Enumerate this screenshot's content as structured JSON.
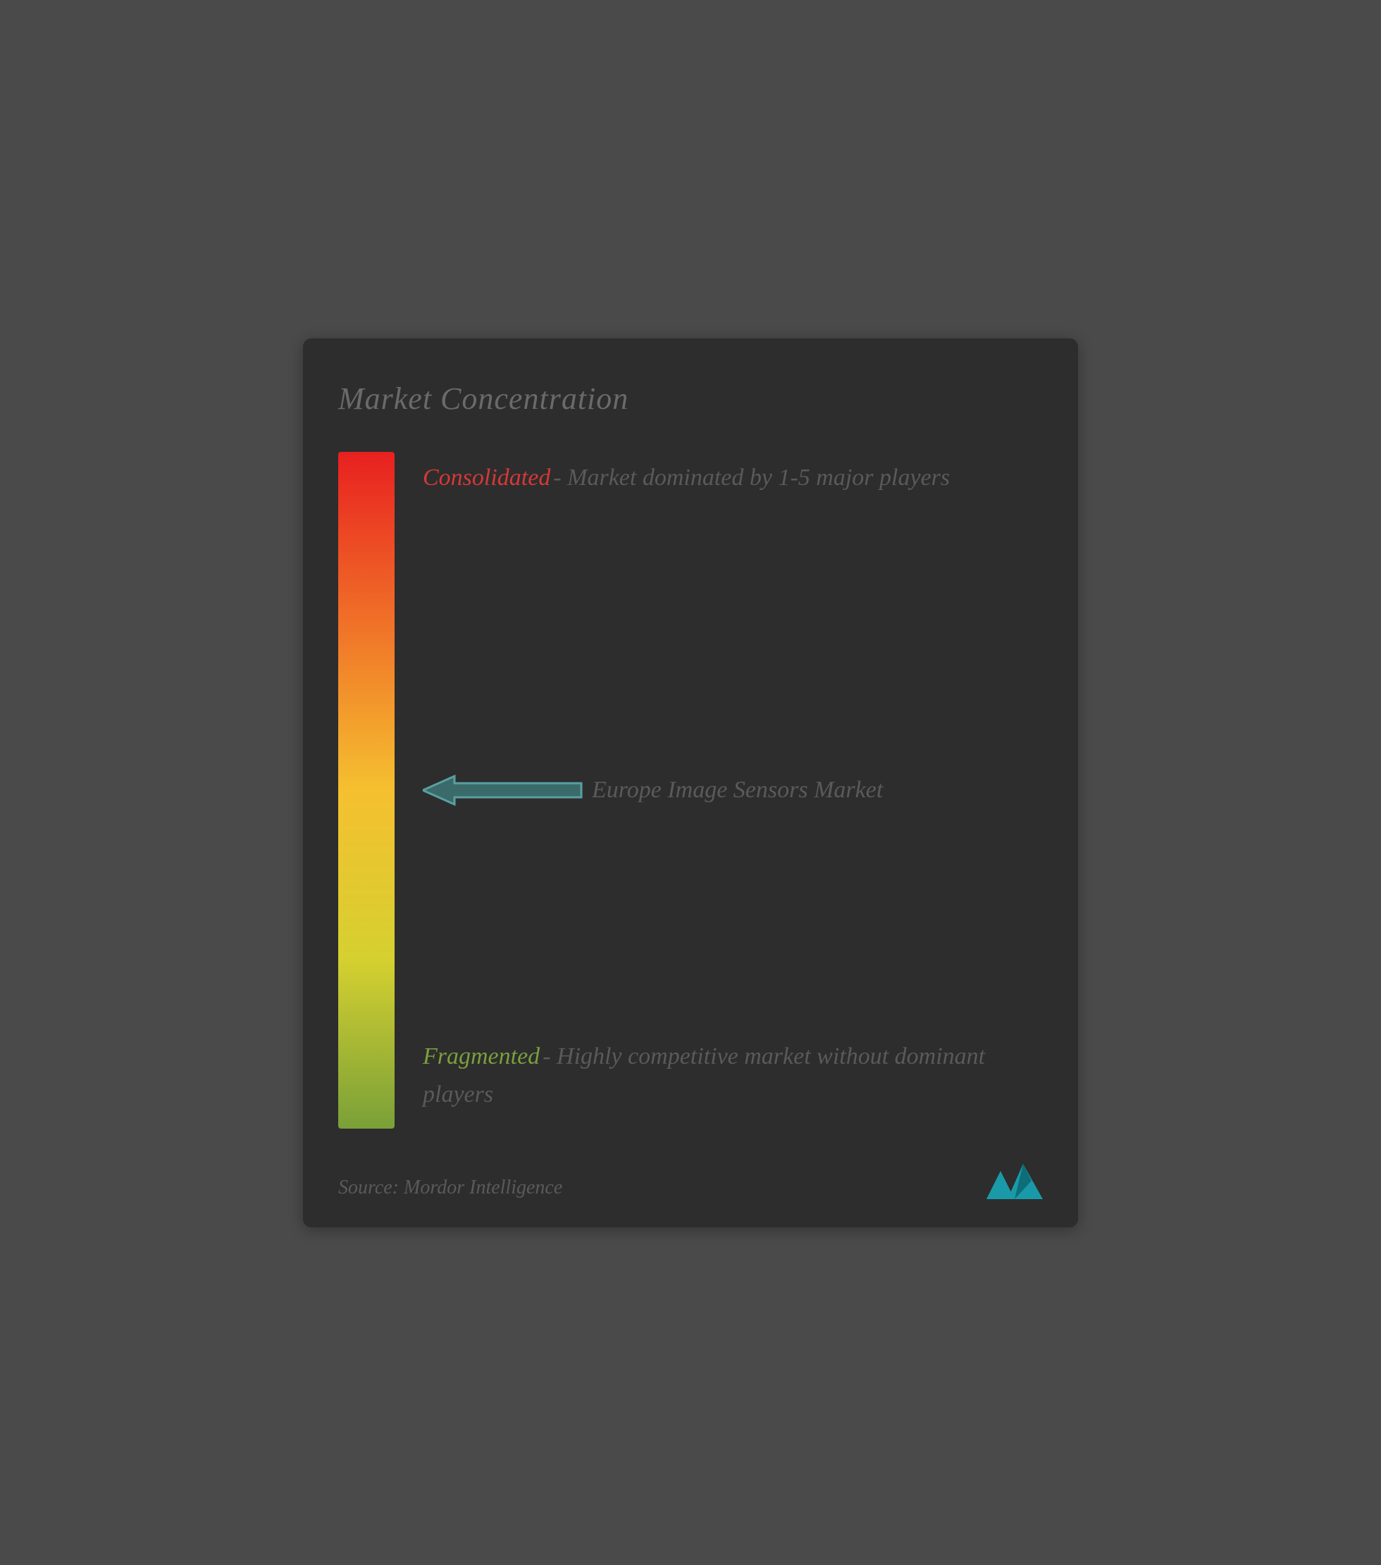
{
  "title": "Market Concentration",
  "gradient": {
    "top_color": "#e82020",
    "mid1_color": "#f07028",
    "mid2_color": "#f5c030",
    "mid3_color": "#d5d030",
    "bottom_color": "#7aa038"
  },
  "top_label": {
    "title": "Consolidated",
    "title_color": "#d63838",
    "description": "- Market dominated by 1-5 major players"
  },
  "marker": {
    "text": "Europe Image Sensors Market",
    "arrow_fill": "#3a6a6a",
    "arrow_stroke": "#5aa0a0",
    "position_percent": 50
  },
  "bottom_label": {
    "title": "Fragmented",
    "title_color": "#7a9f3e",
    "description": " - Highly competitive market without dominant players"
  },
  "source": "Source: Mordor Intelligence",
  "logo": {
    "primary_color": "#1a9aa8",
    "secondary_color": "#0d6d78"
  },
  "card_bg": "#2d2d2d",
  "text_muted": "#5a5a5a",
  "title_color": "#6a6a6a"
}
